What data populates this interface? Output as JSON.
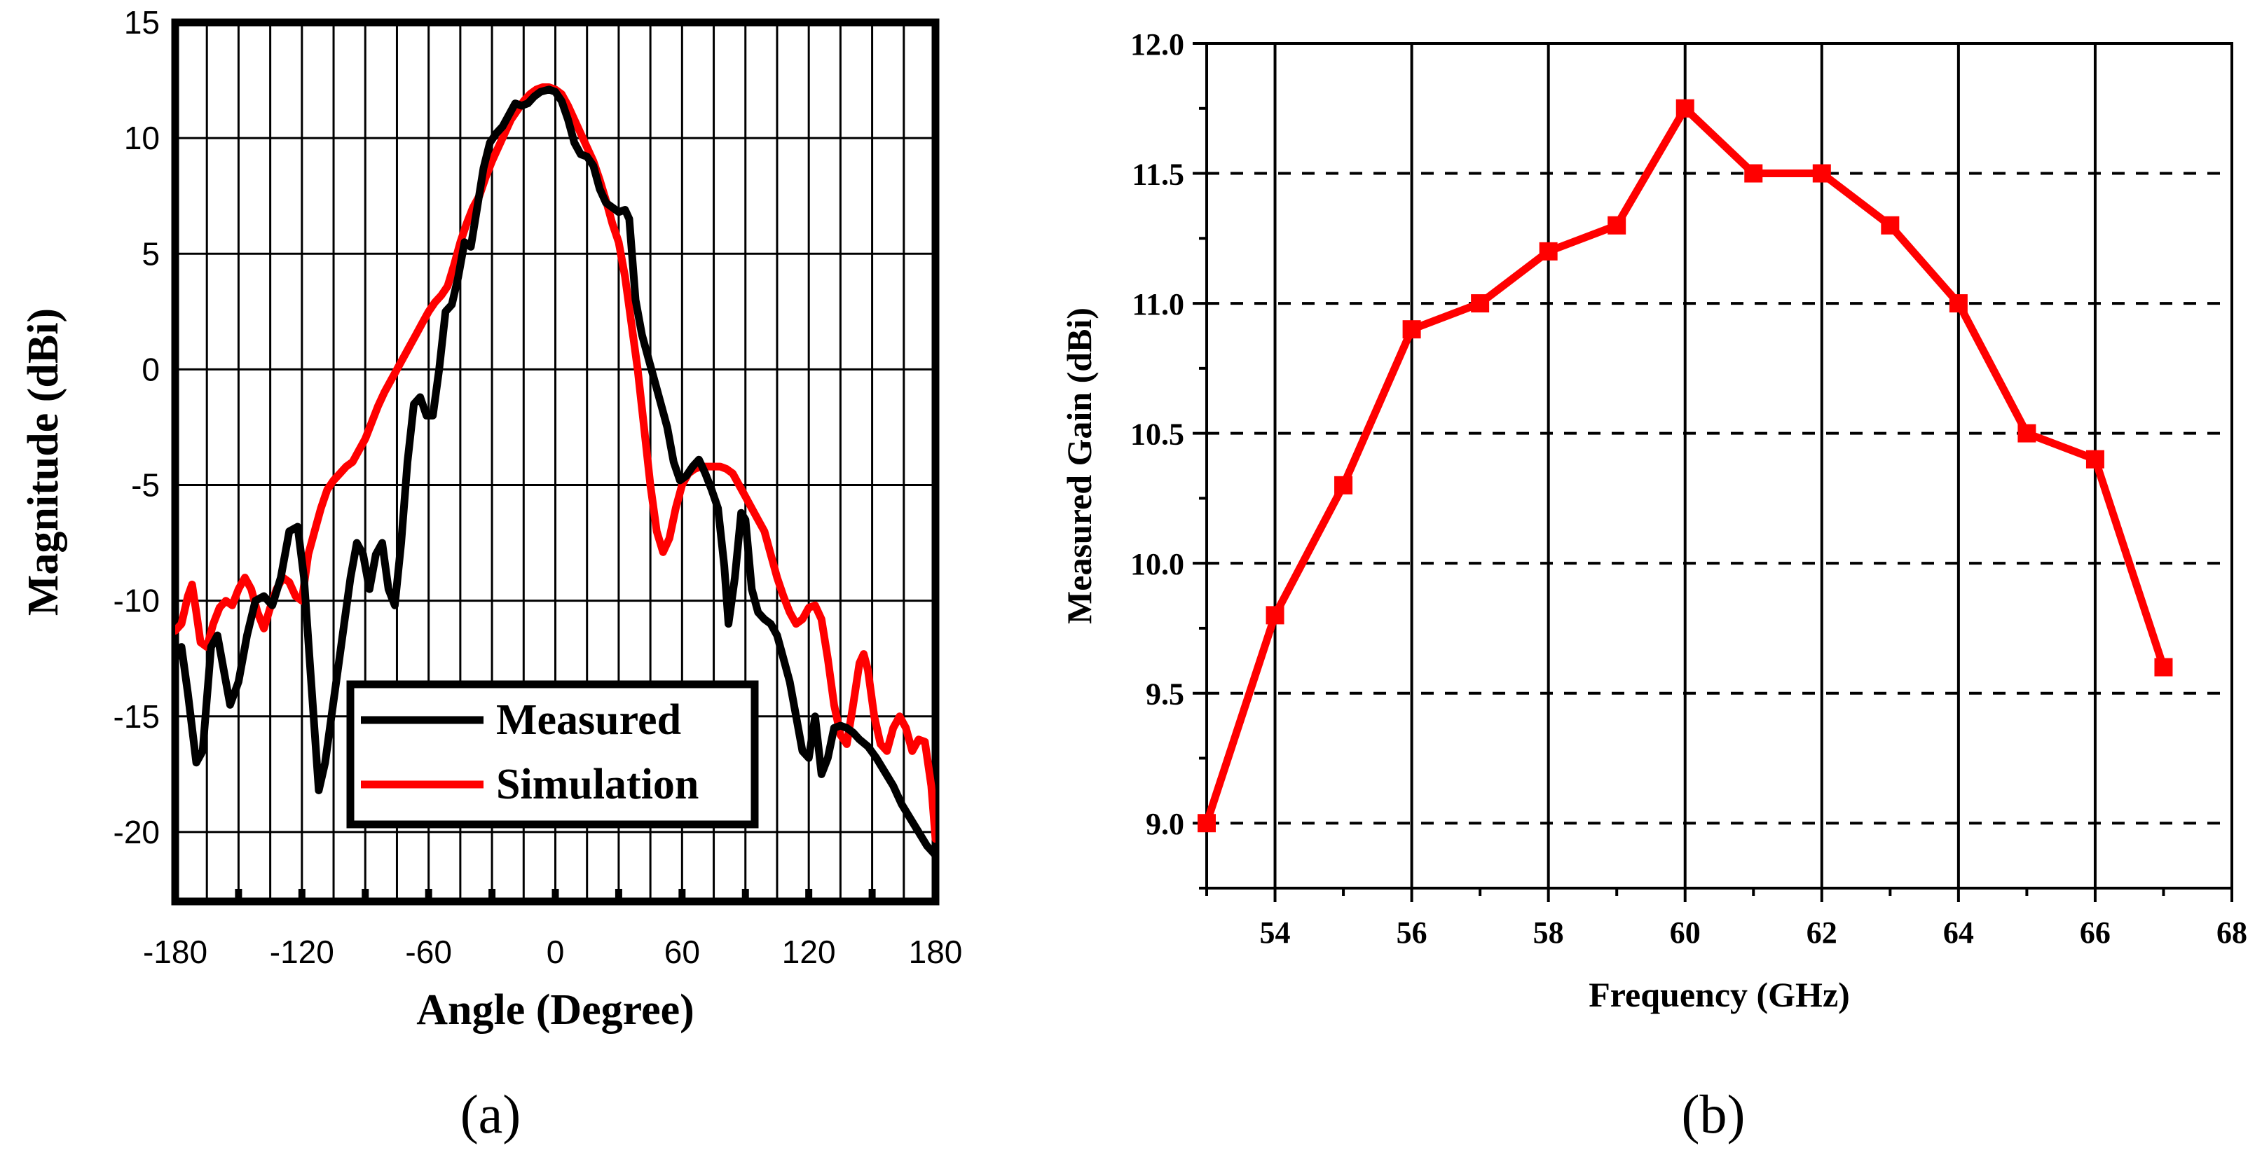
{
  "chart_data": [
    {
      "type": "line",
      "panel_label": "(a)",
      "xlabel": "Angle (Degree)",
      "ylabel": "Magnitude (dBi)",
      "xlim": [
        -180,
        180
      ],
      "ylim": [
        -23,
        15
      ],
      "xticks": [
        -180,
        -120,
        -60,
        0,
        60,
        120,
        180
      ],
      "yticks": [
        -20,
        -15,
        -10,
        -5,
        0,
        5,
        10,
        15
      ],
      "grid": true,
      "legend_position": "bottom-center",
      "series": [
        {
          "name": "Measured",
          "color": "#000000",
          "points": [
            [
              -180,
              -12.5
            ],
            [
              -177,
              -12
            ],
            [
              -174,
              -14
            ],
            [
              -170,
              -17
            ],
            [
              -167,
              -16.5
            ],
            [
              -163,
              -12
            ],
            [
              -160,
              -11.5
            ],
            [
              -157,
              -13
            ],
            [
              -154,
              -14.5
            ],
            [
              -150,
              -13.5
            ],
            [
              -146,
              -11.5
            ],
            [
              -142,
              -10
            ],
            [
              -138,
              -9.8
            ],
            [
              -134,
              -10.2
            ],
            [
              -130,
              -9
            ],
            [
              -126,
              -7
            ],
            [
              -122,
              -6.8
            ],
            [
              -119,
              -9
            ],
            [
              -116,
              -13
            ],
            [
              -112,
              -18.2
            ],
            [
              -109,
              -17
            ],
            [
              -106,
              -15
            ],
            [
              -103,
              -13
            ],
            [
              -100,
              -11
            ],
            [
              -97,
              -9
            ],
            [
              -94,
              -7.5
            ],
            [
              -91,
              -8
            ],
            [
              -88,
              -9.5
            ],
            [
              -85,
              -8
            ],
            [
              -82,
              -7.5
            ],
            [
              -79,
              -9.5
            ],
            [
              -76,
              -10.2
            ],
            [
              -73,
              -7.5
            ],
            [
              -70,
              -4
            ],
            [
              -67,
              -1.5
            ],
            [
              -64,
              -1.2
            ],
            [
              -61,
              -2
            ],
            [
              -58,
              -2
            ],
            [
              -55,
              0
            ],
            [
              -52,
              2.5
            ],
            [
              -49,
              2.8
            ],
            [
              -46,
              4
            ],
            [
              -43,
              5.5
            ],
            [
              -40,
              5.3
            ],
            [
              -37,
              7
            ],
            [
              -34,
              8.7
            ],
            [
              -31,
              9.8
            ],
            [
              -28,
              10.2
            ],
            [
              -25,
              10.5
            ],
            [
              -22,
              11
            ],
            [
              -19,
              11.5
            ],
            [
              -16,
              11.4
            ],
            [
              -13,
              11.5
            ],
            [
              -10,
              11.8
            ],
            [
              -7,
              12
            ],
            [
              -3,
              12.1
            ],
            [
              0,
              12
            ],
            [
              3,
              11.6
            ],
            [
              6,
              10.8
            ],
            [
              9,
              9.8
            ],
            [
              12,
              9.3
            ],
            [
              15,
              9.2
            ],
            [
              18,
              8.8
            ],
            [
              21,
              7.8
            ],
            [
              24,
              7.2
            ],
            [
              27,
              7
            ],
            [
              30,
              6.8
            ],
            [
              33,
              6.9
            ],
            [
              35,
              6.5
            ],
            [
              38,
              3
            ],
            [
              41,
              1.5
            ],
            [
              44,
              0.5
            ],
            [
              47,
              -0.5
            ],
            [
              50,
              -1.5
            ],
            [
              53,
              -2.5
            ],
            [
              56,
              -4
            ],
            [
              59,
              -4.8
            ],
            [
              62,
              -4.6
            ],
            [
              65,
              -4.2
            ],
            [
              68,
              -3.9
            ],
            [
              71,
              -4.5
            ],
            [
              74,
              -5.2
            ],
            [
              77,
              -6
            ],
            [
              80,
              -8.5
            ],
            [
              82,
              -11
            ],
            [
              85,
              -9
            ],
            [
              88,
              -6.2
            ],
            [
              90,
              -6.5
            ],
            [
              93,
              -9.5
            ],
            [
              96,
              -10.5
            ],
            [
              99,
              -10.8
            ],
            [
              102,
              -11
            ],
            [
              105,
              -11.5
            ],
            [
              108,
              -12.5
            ],
            [
              111,
              -13.5
            ],
            [
              114,
              -15
            ],
            [
              117,
              -16.5
            ],
            [
              120,
              -16.8
            ],
            [
              123,
              -15
            ],
            [
              126,
              -17.5
            ],
            [
              129,
              -16.8
            ],
            [
              132,
              -15.5
            ],
            [
              135,
              -15.4
            ],
            [
              138,
              -15.5
            ],
            [
              141,
              -15.7
            ],
            [
              144,
              -16
            ],
            [
              148,
              -16.3
            ],
            [
              152,
              -16.8
            ],
            [
              156,
              -17.4
            ],
            [
              160,
              -18
            ],
            [
              164,
              -18.8
            ],
            [
              168,
              -19.4
            ],
            [
              172,
              -20
            ],
            [
              176,
              -20.6
            ],
            [
              180,
              -21
            ]
          ]
        },
        {
          "name": "Simulation",
          "color": "#ff0000",
          "points": [
            [
              -180,
              -11.3
            ],
            [
              -177,
              -11
            ],
            [
              -174,
              -9.8
            ],
            [
              -172,
              -9.3
            ],
            [
              -170,
              -10.5
            ],
            [
              -168,
              -11.8
            ],
            [
              -165,
              -12
            ],
            [
              -162,
              -11
            ],
            [
              -159,
              -10.3
            ],
            [
              -156,
              -10
            ],
            [
              -153,
              -10.2
            ],
            [
              -150,
              -9.5
            ],
            [
              -147,
              -9
            ],
            [
              -144,
              -9.5
            ],
            [
              -141,
              -10.5
            ],
            [
              -138,
              -11.2
            ],
            [
              -135,
              -10.3
            ],
            [
              -132,
              -9.5
            ],
            [
              -129,
              -9
            ],
            [
              -126,
              -9.2
            ],
            [
              -123,
              -9.8
            ],
            [
              -120,
              -10
            ],
            [
              -117,
              -8
            ],
            [
              -114,
              -7
            ],
            [
              -111,
              -6
            ],
            [
              -108,
              -5.2
            ],
            [
              -105,
              -4.8
            ],
            [
              -102,
              -4.5
            ],
            [
              -99,
              -4.2
            ],
            [
              -96,
              -4
            ],
            [
              -93,
              -3.5
            ],
            [
              -90,
              -3
            ],
            [
              -87,
              -2.3
            ],
            [
              -84,
              -1.6
            ],
            [
              -81,
              -1
            ],
            [
              -78,
              -0.5
            ],
            [
              -75,
              0
            ],
            [
              -72,
              0.5
            ],
            [
              -69,
              1
            ],
            [
              -66,
              1.5
            ],
            [
              -63,
              2
            ],
            [
              -60,
              2.5
            ],
            [
              -57,
              2.9
            ],
            [
              -54,
              3.2
            ],
            [
              -51,
              3.6
            ],
            [
              -48,
              4.5
            ],
            [
              -45,
              5.5
            ],
            [
              -42,
              6.3
            ],
            [
              -39,
              7
            ],
            [
              -36,
              7.5
            ],
            [
              -33,
              8.3
            ],
            [
              -30,
              9
            ],
            [
              -27,
              9.6
            ],
            [
              -24,
              10.2
            ],
            [
              -21,
              10.8
            ],
            [
              -18,
              11.2
            ],
            [
              -15,
              11.6
            ],
            [
              -12,
              11.9
            ],
            [
              -9,
              12.1
            ],
            [
              -6,
              12.2
            ],
            [
              -3,
              12.2
            ],
            [
              0,
              12.1
            ],
            [
              3,
              11.9
            ],
            [
              6,
              11.4
            ],
            [
              9,
              10.8
            ],
            [
              12,
              10.2
            ],
            [
              15,
              9.6
            ],
            [
              18,
              9
            ],
            [
              21,
              8.2
            ],
            [
              24,
              7.3
            ],
            [
              27,
              6.3
            ],
            [
              30,
              5.5
            ],
            [
              33,
              4
            ],
            [
              36,
              2
            ],
            [
              39,
              0
            ],
            [
              42,
              -2.5
            ],
            [
              45,
              -5
            ],
            [
              48,
              -7
            ],
            [
              51,
              -7.9
            ],
            [
              54,
              -7.3
            ],
            [
              57,
              -6
            ],
            [
              60,
              -5
            ],
            [
              63,
              -4.5
            ],
            [
              66,
              -4.3
            ],
            [
              69,
              -4.2
            ],
            [
              72,
              -4.2
            ],
            [
              75,
              -4.2
            ],
            [
              78,
              -4.2
            ],
            [
              81,
              -4.3
            ],
            [
              84,
              -4.5
            ],
            [
              87,
              -5
            ],
            [
              90,
              -5.5
            ],
            [
              93,
              -6
            ],
            [
              96,
              -6.5
            ],
            [
              99,
              -7
            ],
            [
              102,
              -8
            ],
            [
              105,
              -9
            ],
            [
              108,
              -9.8
            ],
            [
              111,
              -10.5
            ],
            [
              114,
              -11
            ],
            [
              117,
              -10.8
            ],
            [
              120,
              -10.3
            ],
            [
              123,
              -10.2
            ],
            [
              126,
              -10.8
            ],
            [
              129,
              -12.5
            ],
            [
              132,
              -14.5
            ],
            [
              135,
              -15.8
            ],
            [
              138,
              -16.2
            ],
            [
              141,
              -14.5
            ],
            [
              144,
              -12.7
            ],
            [
              146,
              -12.3
            ],
            [
              148,
              -13
            ],
            [
              151,
              -15
            ],
            [
              154,
              -16.2
            ],
            [
              157,
              -16.5
            ],
            [
              160,
              -15.5
            ],
            [
              163,
              -15
            ],
            [
              166,
              -15.5
            ],
            [
              169,
              -16.5
            ],
            [
              172,
              -16
            ],
            [
              175,
              -16.1
            ],
            [
              178,
              -18
            ],
            [
              180,
              -20.3
            ]
          ]
        }
      ]
    },
    {
      "type": "line",
      "panel_label": "(b)",
      "xlabel": "Frequency (GHz)",
      "ylabel": "Measured Gain (dBi)",
      "xlim": [
        53,
        68
      ],
      "ylim": [
        8.75,
        12.0
      ],
      "xticks": [
        54,
        56,
        58,
        60,
        62,
        64,
        66,
        68
      ],
      "yticks": [
        9.0,
        9.5,
        10.0,
        10.5,
        11.0,
        11.5,
        12.0
      ],
      "ytick_labels": [
        "9.0",
        "9.5",
        "10.0",
        "10.5",
        "11.0",
        "11.5",
        "12.0"
      ],
      "grid": true,
      "series": [
        {
          "color": "#ff0000",
          "marker": "square",
          "x": [
            53,
            54,
            55,
            56,
            57,
            58,
            59,
            60,
            61,
            62,
            63,
            64,
            65,
            66,
            67
          ],
          "y": [
            9.0,
            9.8,
            10.3,
            10.9,
            11.0,
            11.2,
            11.3,
            11.75,
            11.5,
            11.5,
            11.3,
            11.0,
            10.5,
            10.4,
            9.6
          ]
        }
      ]
    }
  ]
}
